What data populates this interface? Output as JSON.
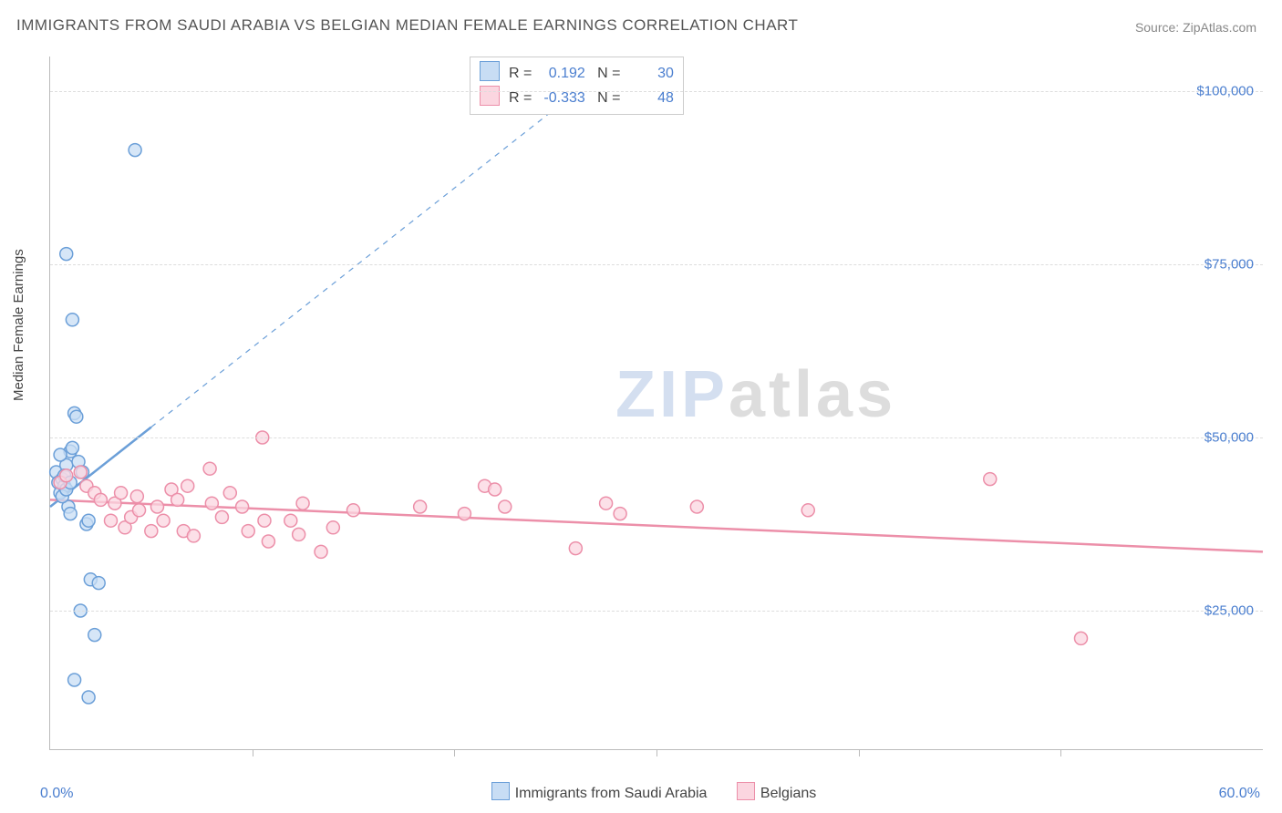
{
  "title": "IMMIGRANTS FROM SAUDI ARABIA VS BELGIAN MEDIAN FEMALE EARNINGS CORRELATION CHART",
  "source_label": "Source: ZipAtlas.com",
  "watermark_a": "ZIP",
  "watermark_b": "atlas",
  "y_axis_title": "Median Female Earnings",
  "chart": {
    "type": "scatter",
    "background_color": "#ffffff",
    "grid_color": "#dddddd",
    "axis_color": "#bbbbbb",
    "label_color": "#4a7ecf",
    "xlim": [
      0,
      60
    ],
    "ylim": [
      5000,
      105000
    ],
    "x_tick_step": 10,
    "y_ticks": [
      25000,
      50000,
      75000,
      100000
    ],
    "y_tick_labels": [
      "$25,000",
      "$50,000",
      "$75,000",
      "$100,000"
    ],
    "x_min_label": "0.0%",
    "x_max_label": "60.0%",
    "marker_radius": 7,
    "marker_stroke_width": 1.5,
    "trend_stroke_width": 2.5,
    "series": [
      {
        "id": "saudi",
        "label": "Immigrants from Saudi Arabia",
        "fill": "#c8ddf4",
        "stroke": "#6b9fd8",
        "R": "0.192",
        "N": "30",
        "trend": {
          "x1": 0,
          "y1": 40000,
          "x2": 5,
          "y2": 51500,
          "extrapolate_to_x": 27,
          "dash": "6 6"
        },
        "points": [
          [
            0.3,
            45000
          ],
          [
            0.4,
            43500
          ],
          [
            0.5,
            42000
          ],
          [
            0.6,
            44000
          ],
          [
            0.7,
            43000
          ],
          [
            0.8,
            46000
          ],
          [
            1.0,
            48000
          ],
          [
            1.1,
            48500
          ],
          [
            1.2,
            53500
          ],
          [
            1.3,
            53000
          ],
          [
            1.4,
            46500
          ],
          [
            1.6,
            45000
          ],
          [
            0.9,
            40000
          ],
          [
            1.0,
            39000
          ],
          [
            1.8,
            37500
          ],
          [
            1.9,
            38000
          ],
          [
            2.0,
            29500
          ],
          [
            2.4,
            29000
          ],
          [
            1.5,
            25000
          ],
          [
            2.2,
            21500
          ],
          [
            1.2,
            15000
          ],
          [
            1.9,
            12500
          ],
          [
            1.1,
            67000
          ],
          [
            0.8,
            76500
          ],
          [
            4.2,
            91500
          ],
          [
            0.5,
            47500
          ],
          [
            0.6,
            41500
          ],
          [
            0.7,
            44500
          ],
          [
            0.8,
            42500
          ],
          [
            1.0,
            43500
          ]
        ]
      },
      {
        "id": "belgian",
        "label": "Belgians",
        "fill": "#fbd6e0",
        "stroke": "#ec8fa9",
        "R": "-0.333",
        "N": "48",
        "trend": {
          "x1": 0,
          "y1": 41000,
          "x2": 60,
          "y2": 33500
        },
        "points": [
          [
            0.5,
            43500
          ],
          [
            0.8,
            44500
          ],
          [
            1.5,
            45000
          ],
          [
            1.8,
            43000
          ],
          [
            2.2,
            42000
          ],
          [
            2.5,
            41000
          ],
          [
            3.0,
            38000
          ],
          [
            3.2,
            40500
          ],
          [
            3.5,
            42000
          ],
          [
            3.7,
            37000
          ],
          [
            4.0,
            38500
          ],
          [
            4.3,
            41500
          ],
          [
            4.4,
            39500
          ],
          [
            5.0,
            36500
          ],
          [
            5.3,
            40000
          ],
          [
            5.6,
            38000
          ],
          [
            6.0,
            42500
          ],
          [
            6.3,
            41000
          ],
          [
            6.6,
            36500
          ],
          [
            6.8,
            43000
          ],
          [
            7.1,
            35800
          ],
          [
            7.9,
            45500
          ],
          [
            8.0,
            40500
          ],
          [
            8.5,
            38500
          ],
          [
            8.9,
            42000
          ],
          [
            9.5,
            40000
          ],
          [
            9.8,
            36500
          ],
          [
            10.5,
            50000
          ],
          [
            10.6,
            38000
          ],
          [
            10.8,
            35000
          ],
          [
            11.9,
            38000
          ],
          [
            12.3,
            36000
          ],
          [
            12.5,
            40500
          ],
          [
            13.4,
            33500
          ],
          [
            14.0,
            37000
          ],
          [
            15.0,
            39500
          ],
          [
            18.3,
            40000
          ],
          [
            20.5,
            39000
          ],
          [
            21.5,
            43000
          ],
          [
            22.0,
            42500
          ],
          [
            22.5,
            40000
          ],
          [
            26.0,
            34000
          ],
          [
            27.5,
            40500
          ],
          [
            28.2,
            39000
          ],
          [
            32.0,
            40000
          ],
          [
            37.5,
            39500
          ],
          [
            46.5,
            44000
          ],
          [
            51.0,
            21000
          ]
        ]
      }
    ]
  },
  "stats_labels": {
    "r": "R =",
    "n": "N ="
  },
  "legend_bottom": {
    "items": [
      {
        "label_ref": "chart.series.0.label",
        "fill": "#c8ddf4",
        "stroke": "#6b9fd8"
      },
      {
        "label_ref": "chart.series.1.label",
        "fill": "#fbd6e0",
        "stroke": "#ec8fa9"
      }
    ]
  }
}
